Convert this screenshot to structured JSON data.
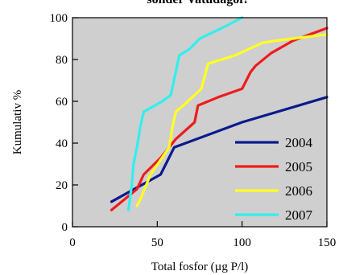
{
  "chart_data": {
    "type": "line",
    "title": "sonder Vatudagöl?",
    "xlabel": "Total fosfor (µg P/l)",
    "ylabel": "Kumulativ %",
    "xlim": [
      0,
      150
    ],
    "ylim": [
      0,
      100
    ],
    "xticks": [
      0,
      50,
      100,
      150
    ],
    "yticks": [
      0,
      20,
      40,
      60,
      80,
      100
    ],
    "grid": false,
    "background": "#cfcfcf",
    "legend_position": "lower-right",
    "series": [
      {
        "name": "2004",
        "color": "#0b1a8c",
        "points": [
          [
            23,
            12
          ],
          [
            52,
            25
          ],
          [
            60,
            38
          ],
          [
            100,
            50
          ],
          [
            150,
            62
          ]
        ]
      },
      {
        "name": "2005",
        "color": "#ee1c1c",
        "points": [
          [
            23,
            8
          ],
          [
            38,
            18
          ],
          [
            42,
            25
          ],
          [
            52,
            33
          ],
          [
            57,
            38
          ],
          [
            61,
            42
          ],
          [
            72,
            50
          ],
          [
            74,
            58
          ],
          [
            86,
            62
          ],
          [
            100,
            66
          ],
          [
            105,
            74
          ],
          [
            108,
            77
          ],
          [
            117,
            83
          ],
          [
            130,
            89
          ],
          [
            150,
            95
          ]
        ]
      },
      {
        "name": "2006",
        "color": "#ffff22",
        "points": [
          [
            38,
            10
          ],
          [
            40,
            13
          ],
          [
            46,
            25
          ],
          [
            52,
            32
          ],
          [
            57,
            38
          ],
          [
            59,
            48
          ],
          [
            61,
            55
          ],
          [
            68,
            60
          ],
          [
            76,
            66
          ],
          [
            80,
            78
          ],
          [
            96,
            82
          ],
          [
            112,
            88
          ],
          [
            120,
            89
          ],
          [
            150,
            92
          ]
        ]
      },
      {
        "name": "2007",
        "color": "#33eeee",
        "points": [
          [
            33,
            8
          ],
          [
            35,
            20
          ],
          [
            36,
            30
          ],
          [
            38,
            38
          ],
          [
            39,
            43
          ],
          [
            40,
            48
          ],
          [
            42,
            55
          ],
          [
            53,
            60
          ],
          [
            58,
            63
          ],
          [
            63,
            82
          ],
          [
            69,
            85
          ],
          [
            75,
            90
          ],
          [
            88,
            95
          ],
          [
            100,
            100
          ]
        ]
      }
    ]
  }
}
